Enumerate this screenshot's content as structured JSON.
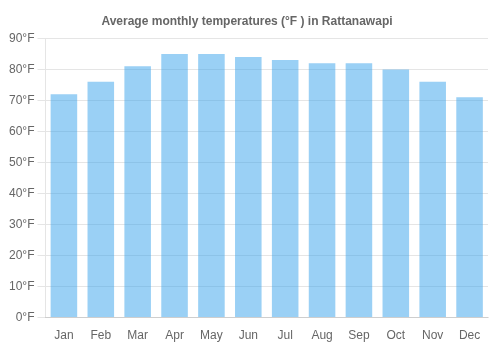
{
  "chart_data": {
    "type": "bar",
    "title": "Average monthly temperatures (°F ) in Rattanawapi",
    "categories": [
      "Jan",
      "Feb",
      "Mar",
      "Apr",
      "May",
      "Jun",
      "Jul",
      "Aug",
      "Sep",
      "Oct",
      "Nov",
      "Dec"
    ],
    "values": [
      72,
      76,
      81,
      85,
      85,
      84,
      83,
      82,
      82,
      80,
      76,
      71
    ],
    "ylim": [
      0,
      90
    ],
    "yticks": [
      {
        "value": 0,
        "label": "0°F"
      },
      {
        "value": 10,
        "label": "10°F"
      },
      {
        "value": 20,
        "label": "20°F"
      },
      {
        "value": 30,
        "label": "30°F"
      },
      {
        "value": 40,
        "label": "40°F"
      },
      {
        "value": 50,
        "label": "50°F"
      },
      {
        "value": 60,
        "label": "60°F"
      },
      {
        "value": 70,
        "label": "70°F"
      },
      {
        "value": 80,
        "label": "80°F"
      },
      {
        "value": 90,
        "label": "90°F"
      }
    ],
    "grid": true
  }
}
